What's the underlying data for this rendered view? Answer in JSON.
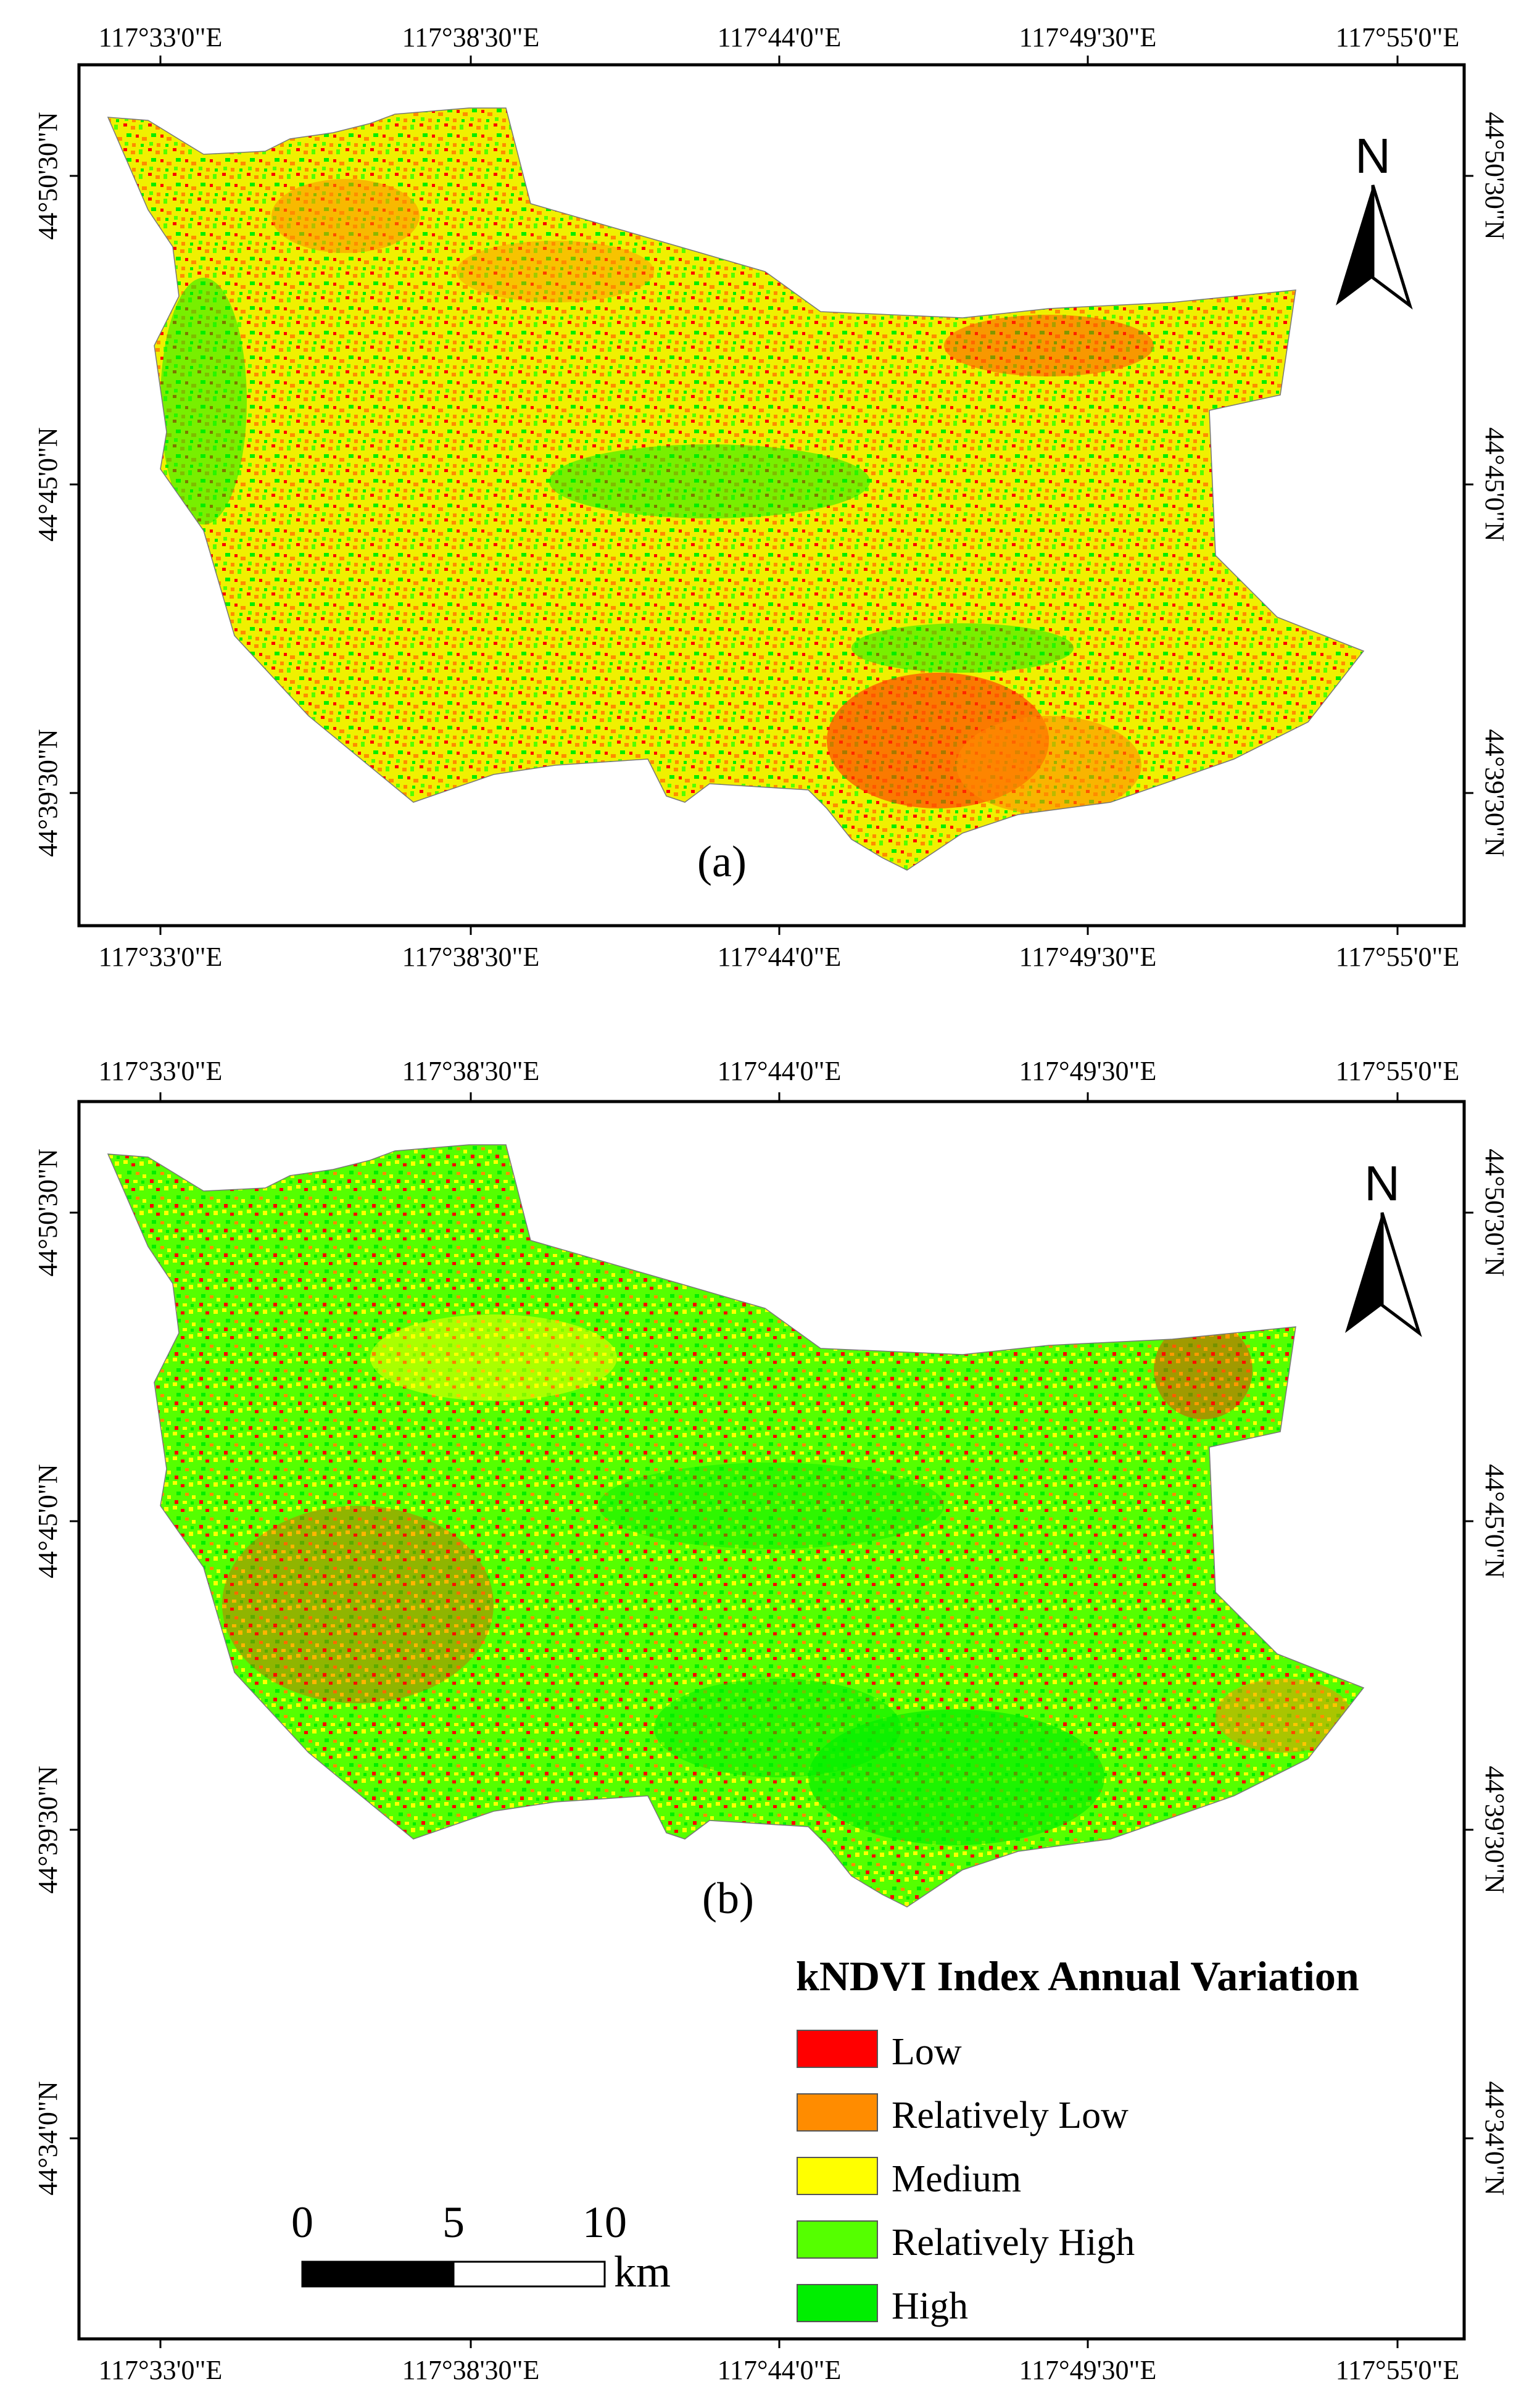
{
  "panels": [
    {
      "caption": "(a)",
      "lon_ticks": [
        "117°33'0\"E",
        "117°38'30\"E",
        "117°44'0\"E",
        "117°49'30\"E",
        "117°55'0\"E"
      ],
      "lat_ticks": [
        "44°50'30\"N",
        "44°45'0\"N",
        "44°39'30\"N"
      ],
      "north_label": "N"
    },
    {
      "caption": "(b)",
      "lon_ticks": [
        "117°33'0\"E",
        "117°38'30\"E",
        "117°44'0\"E",
        "117°49'30\"E",
        "117°55'0\"E"
      ],
      "lat_ticks": [
        "44°50'30\"N",
        "44°45'0\"N",
        "44°39'30\"N",
        "44°34'0\"N"
      ],
      "north_label": "N"
    }
  ],
  "legend": {
    "title": "kNDVI Index Annual Variation",
    "items": [
      {
        "label": "Low",
        "color": "#ff0000"
      },
      {
        "label": "Relatively Low",
        "color": "#ff8c00"
      },
      {
        "label": "Medium",
        "color": "#ffff00"
      },
      {
        "label": "Relatively High",
        "color": "#55ff00"
      },
      {
        "label": "High",
        "color": "#00ee00"
      }
    ]
  },
  "scale_bar": {
    "ticks": [
      "0",
      "5",
      "10"
    ],
    "unit": "km"
  },
  "colors": {
    "low": "#ff0000",
    "relatively_low": "#ff8c00",
    "medium": "#ffff00",
    "relatively_high": "#55ff00",
    "high": "#00ee00",
    "frame": "#000000",
    "background": "#ffffff"
  }
}
